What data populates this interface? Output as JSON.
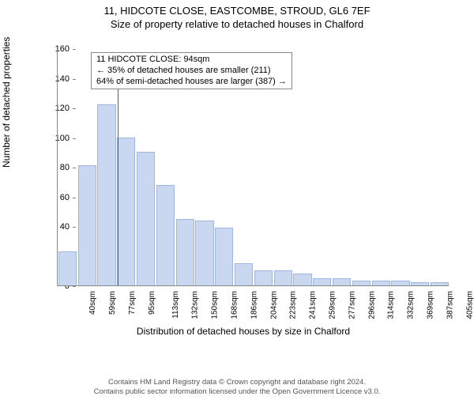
{
  "header": {
    "address": "11, HIDCOTE CLOSE, EASTCOMBE, STROUD, GL6 7EF",
    "subtitle": "Size of property relative to detached houses in Chalford"
  },
  "chart": {
    "type": "histogram",
    "ylabel": "Number of detached properties",
    "xlabel": "Distribution of detached houses by size in Chalford",
    "ylim": [
      0,
      160
    ],
    "ytick_step": 20,
    "yticks": [
      0,
      20,
      40,
      60,
      80,
      100,
      120,
      140,
      160
    ],
    "bar_color": "#c9d8f0",
    "bar_border": "#9fb6de",
    "background_color": "#ffffff",
    "grid_color": "#eeeeee",
    "marker_line_color": "#d62c2c",
    "label_fontsize": 12,
    "tick_fontsize": 10,
    "categories": [
      "40sqm",
      "59sqm",
      "77sqm",
      "95sqm",
      "113sqm",
      "132sqm",
      "150sqm",
      "168sqm",
      "186sqm",
      "204sqm",
      "223sqm",
      "241sqm",
      "259sqm",
      "277sqm",
      "296sqm",
      "314sqm",
      "332sqm",
      "369sqm",
      "387sqm",
      "405sqm"
    ],
    "values": [
      23,
      81,
      122,
      100,
      90,
      68,
      45,
      44,
      39,
      15,
      10,
      10,
      8,
      5,
      5,
      3,
      3,
      3,
      2,
      2
    ],
    "marker_index": 3,
    "marker_height": 140,
    "annotation": {
      "line1": "11 HIDCOTE CLOSE: 94sqm",
      "line2": "← 35% of detached houses are smaller (211)",
      "line3": "64% of semi-detached houses are larger (387) →"
    }
  },
  "footer": {
    "line1": "Contains HM Land Registry data © Crown copyright and database right 2024.",
    "line2": "Contains public sector information licensed under the Open Government Licence v3.0."
  }
}
